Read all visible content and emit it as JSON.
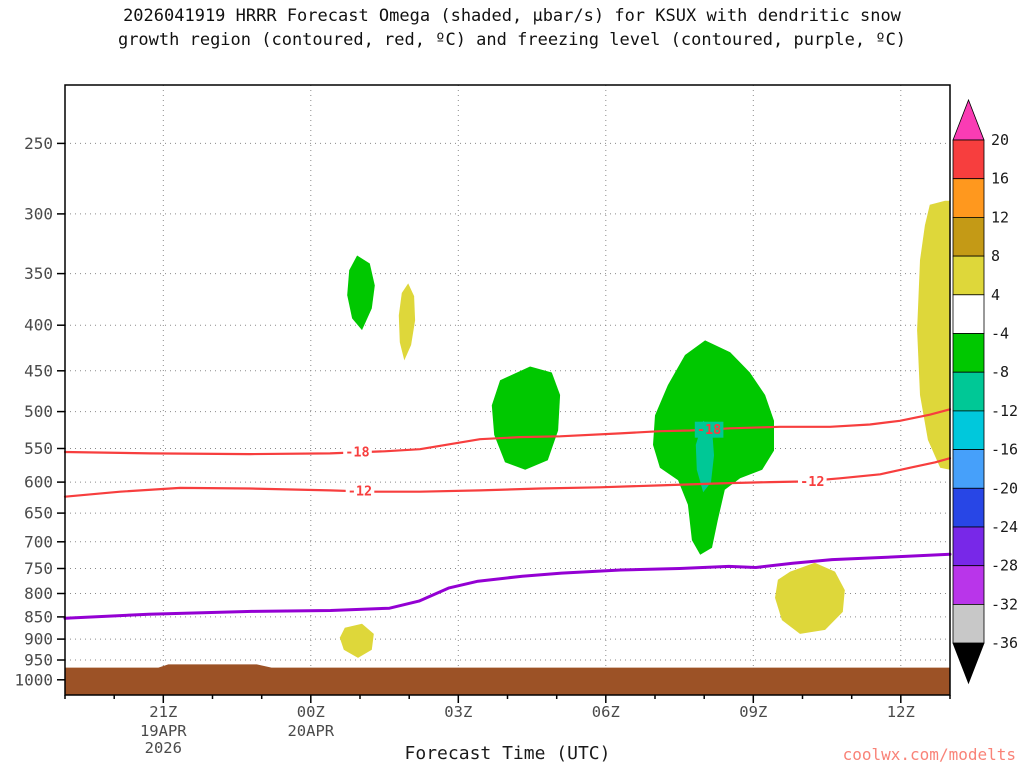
{
  "title": {
    "line1": "2026041919 HRRR Forecast Omega (shaded, μbar/s) for KSUX with dendritic snow",
    "line2": "growth region (contoured, red, ºC) and freezing level (contoured, purple, ºC)"
  },
  "watermark": "coolwx.com/modelts",
  "chart_data": {
    "type": "heatmap",
    "subtype": "time-height cross section (pressure vs forecast time)",
    "title": "2026041919 HRRR Forecast Omega (shaded, μbar/s) for KSUX with dendritic snow growth region (contoured, red, ºC) and freezing level (contoured, purple, ºC)",
    "shading_variable": "omega (μbar/s)",
    "x_axis": {
      "label": "Forecast Time (UTC)",
      "range_hours": [
        0,
        18
      ],
      "ticks": [
        {
          "h": 2,
          "label": "21Z",
          "sub": "19APR",
          "sub2": "2026"
        },
        {
          "h": 5,
          "label": "00Z",
          "sub": "20APR"
        },
        {
          "h": 8,
          "label": "03Z"
        },
        {
          "h": 11,
          "label": "06Z"
        },
        {
          "h": 14,
          "label": "09Z"
        },
        {
          "h": 17,
          "label": "12Z"
        }
      ]
    },
    "y_axis": {
      "unit": "hPa",
      "scale": "log",
      "top_pressure": 215,
      "bottom_pressure": 1040,
      "ticks": [
        250,
        300,
        350,
        400,
        450,
        500,
        550,
        600,
        650,
        700,
        750,
        800,
        850,
        900,
        950,
        1000
      ]
    },
    "colorbar": {
      "labels": [
        20,
        16,
        12,
        8,
        4,
        -4,
        -8,
        -12,
        -16,
        -20,
        -24,
        -28,
        -32,
        -36
      ],
      "band_colors": [
        "#f73e3e",
        "#ff981e",
        "#c49a16",
        "#ded73a",
        "#ffffff",
        "#00c800",
        "#00c896",
        "#00c8dc",
        "#46a0fa",
        "#2846e6",
        "#7828e8",
        "#b935ea",
        "#c8c8c8"
      ],
      "arrow_top_color": "#fa3cb4",
      "arrow_bottom_color": "#000000"
    },
    "shaded_regions": [
      {
        "name": "ascent-green-01z",
        "value_range": "-8 to -4 μbar/s",
        "color": "#00c800",
        "points": [
          [
            5.94,
            334
          ],
          [
            6.2,
            341
          ],
          [
            6.3,
            361
          ],
          [
            6.24,
            383
          ],
          [
            6.04,
            405
          ],
          [
            5.84,
            393
          ],
          [
            5.74,
            370
          ],
          [
            5.78,
            347
          ]
        ]
      },
      {
        "name": "descent-yellow-02z",
        "value_range": "4 to 8 μbar/s",
        "color": "#ded73a",
        "points": [
          [
            6.98,
            359
          ],
          [
            7.1,
            371
          ],
          [
            7.12,
            395
          ],
          [
            7.04,
            421
          ],
          [
            6.9,
            438
          ],
          [
            6.81,
            418
          ],
          [
            6.79,
            390
          ],
          [
            6.85,
            368
          ]
        ]
      },
      {
        "name": "ascent-green-04z",
        "value_range": "-8 to -4 μbar/s",
        "color": "#00c800",
        "points": [
          [
            8.85,
            461
          ],
          [
            9.46,
            445
          ],
          [
            9.9,
            452
          ],
          [
            10.07,
            479
          ],
          [
            10.03,
            525
          ],
          [
            9.82,
            567
          ],
          [
            9.36,
            581
          ],
          [
            8.95,
            570
          ],
          [
            8.73,
            531
          ],
          [
            8.68,
            492
          ]
        ]
      },
      {
        "name": "ascent-green-08z",
        "value_range": "-8 to -4 μbar/s",
        "color": "#00c800",
        "points": [
          [
            13.02,
            416
          ],
          [
            13.53,
            429
          ],
          [
            13.93,
            452
          ],
          [
            14.24,
            479
          ],
          [
            14.42,
            512
          ],
          [
            14.42,
            553
          ],
          [
            14.18,
            581
          ],
          [
            13.73,
            594
          ],
          [
            13.42,
            612
          ],
          [
            13.28,
            661
          ],
          [
            13.16,
            711
          ],
          [
            12.92,
            724
          ],
          [
            12.75,
            697
          ],
          [
            12.67,
            636
          ],
          [
            12.47,
            597
          ],
          [
            12.1,
            578
          ],
          [
            11.96,
            545
          ],
          [
            12.0,
            505
          ],
          [
            12.26,
            467
          ],
          [
            12.61,
            432
          ]
        ]
      },
      {
        "name": "ascent-teal-core-08z",
        "value_range": "-12 to -8 μbar/s",
        "color": "#00c896",
        "points": [
          [
            12.98,
            512
          ],
          [
            13.16,
            522
          ],
          [
            13.2,
            560
          ],
          [
            13.14,
            600
          ],
          [
            12.98,
            616
          ],
          [
            12.85,
            581
          ],
          [
            12.83,
            545
          ]
        ]
      },
      {
        "name": "descent-yellow-10z",
        "value_range": "4 to 8 μbar/s",
        "color": "#ded73a",
        "points": [
          [
            14.75,
            756
          ],
          [
            15.25,
            739
          ],
          [
            15.66,
            756
          ],
          [
            15.86,
            793
          ],
          [
            15.82,
            839
          ],
          [
            15.46,
            879
          ],
          [
            14.95,
            888
          ],
          [
            14.58,
            857
          ],
          [
            14.44,
            809
          ],
          [
            14.5,
            772
          ]
        ]
      },
      {
        "name": "descent-yellow-01z-low",
        "value_range": "4 to 8 μbar/s",
        "color": "#ded73a",
        "points": [
          [
            5.69,
            874
          ],
          [
            6.04,
            865
          ],
          [
            6.28,
            888
          ],
          [
            6.24,
            925
          ],
          [
            5.96,
            945
          ],
          [
            5.67,
            925
          ],
          [
            5.59,
            897
          ]
        ]
      },
      {
        "name": "descent-yellow-13z-edge",
        "value_range": "4 to 8 μbar/s",
        "color": "#ded73a",
        "points": [
          [
            17.59,
            293
          ],
          [
            17.9,
            290
          ],
          [
            18,
            290
          ],
          [
            18,
            581
          ],
          [
            17.8,
            578
          ],
          [
            17.55,
            538
          ],
          [
            17.39,
            479
          ],
          [
            17.33,
            405
          ],
          [
            17.39,
            338
          ],
          [
            17.49,
            309
          ]
        ]
      }
    ],
    "contours": [
      {
        "name": "dgz-minus-18c",
        "value": -18,
        "color": "#f73e3e",
        "width": 2.2,
        "points": [
          [
            0,
            555
          ],
          [
            1.73,
            557
          ],
          [
            3.76,
            558
          ],
          [
            5.39,
            557
          ],
          [
            6.5,
            554
          ],
          [
            7.22,
            551
          ],
          [
            7.83,
            544
          ],
          [
            8.44,
            537
          ],
          [
            9.25,
            534
          ],
          [
            10.07,
            533
          ],
          [
            11.29,
            529
          ],
          [
            12.1,
            526
          ],
          [
            12.71,
            525
          ],
          [
            13.53,
            522
          ],
          [
            14.54,
            520
          ],
          [
            15.56,
            520
          ],
          [
            16.37,
            517
          ],
          [
            16.98,
            512
          ],
          [
            17.59,
            504
          ],
          [
            18,
            497
          ]
        ],
        "labels": [
          {
            "h": 5.95,
            "p": 555,
            "text": "-18",
            "bg": "#ffffff"
          },
          {
            "h": 13.1,
            "p": 524,
            "text": "-18",
            "bg": "#00c896"
          }
        ]
      },
      {
        "name": "dgz-minus-12c",
        "value": -12,
        "color": "#f73e3e",
        "width": 2.2,
        "points": [
          [
            0,
            623
          ],
          [
            1.12,
            615
          ],
          [
            2.34,
            609
          ],
          [
            3.76,
            610
          ],
          [
            5.39,
            613
          ],
          [
            6.2,
            615
          ],
          [
            7.22,
            615
          ],
          [
            8.44,
            613
          ],
          [
            9.66,
            610
          ],
          [
            10.88,
            608
          ],
          [
            12.1,
            605
          ],
          [
            13.32,
            602
          ],
          [
            14.34,
            600
          ],
          [
            15.0,
            599
          ],
          [
            15.76,
            594
          ],
          [
            16.58,
            588
          ],
          [
            17.19,
            578
          ],
          [
            17.7,
            570
          ],
          [
            18,
            564
          ]
        ],
        "labels": [
          {
            "h": 6.0,
            "p": 614,
            "text": "-12",
            "bg": "#ffffff"
          },
          {
            "h": 15.2,
            "p": 599,
            "text": "-12",
            "bg": "#ffffff"
          }
        ]
      },
      {
        "name": "freezing-level-0c",
        "value": 0,
        "color": "#9400d3",
        "width": 3,
        "points": [
          [
            0,
            853
          ],
          [
            1.7,
            844
          ],
          [
            3.8,
            838
          ],
          [
            5.4,
            836
          ],
          [
            6.6,
            831
          ],
          [
            7.2,
            816
          ],
          [
            7.8,
            789
          ],
          [
            8.4,
            775
          ],
          [
            9.3,
            765
          ],
          [
            10.1,
            759
          ],
          [
            11.3,
            753
          ],
          [
            12.5,
            750
          ],
          [
            13.5,
            746
          ],
          [
            14.05,
            748
          ],
          [
            14.8,
            740
          ],
          [
            15.6,
            733
          ],
          [
            16.6,
            729
          ],
          [
            18,
            723
          ]
        ],
        "labels": []
      }
    ],
    "terrain": {
      "color": "#9c5226",
      "points": [
        [
          0,
          969
        ],
        [
          1.9,
          969
        ],
        [
          2.1,
          961
        ],
        [
          3.9,
          961
        ],
        [
          4.2,
          969
        ],
        [
          18,
          969
        ],
        [
          18,
          1040
        ],
        [
          0,
          1040
        ]
      ]
    }
  }
}
